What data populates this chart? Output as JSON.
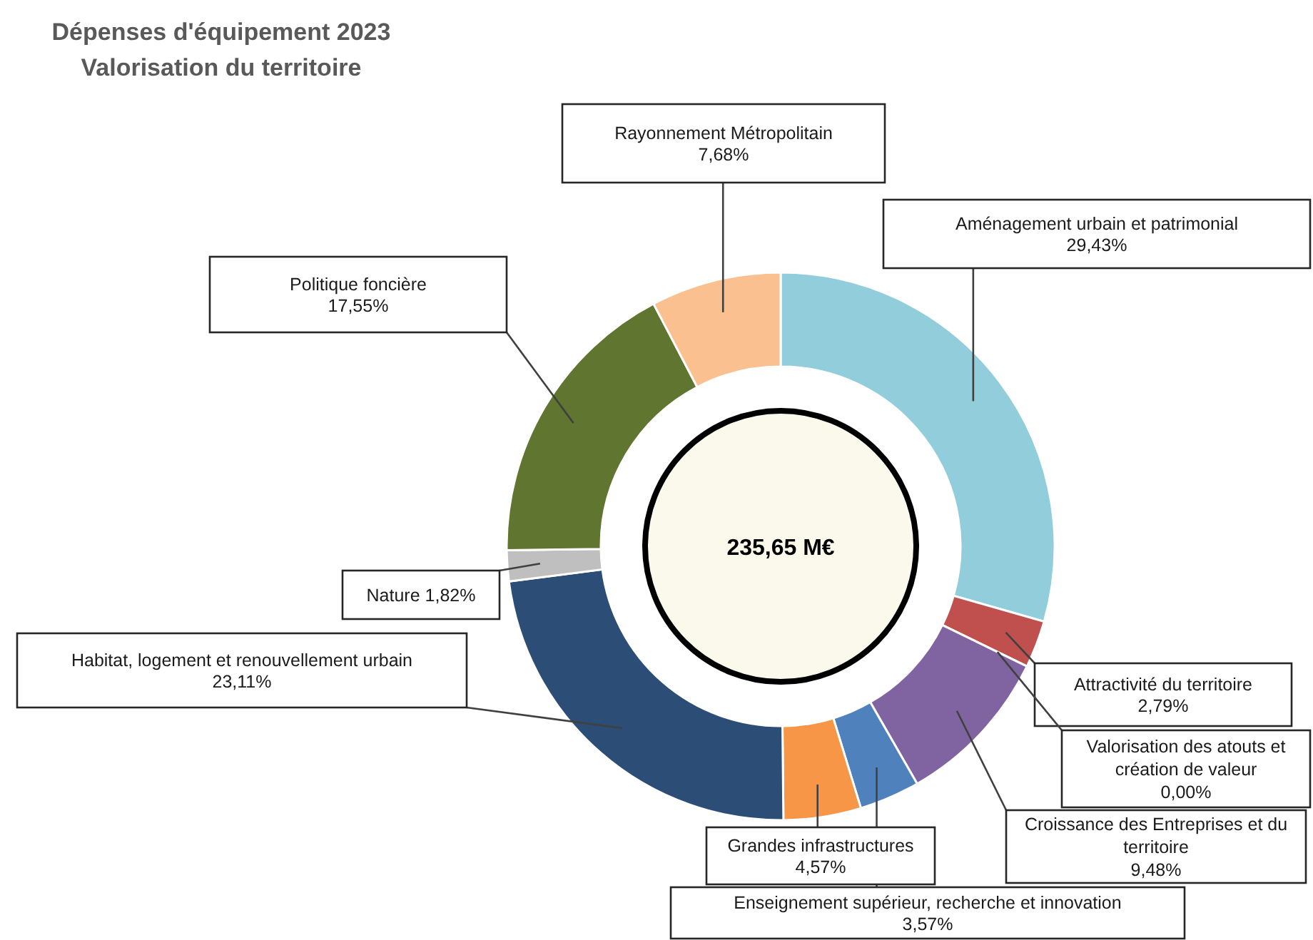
{
  "chart_data": {
    "type": "donut",
    "title": "Dépenses d'équipement 2023",
    "subtitle": "Valorisation du territoire",
    "categories": [
      "Aménagement urbain et patrimonial",
      "Attractivité du territoire",
      "Valorisation des atouts et création de valeur",
      "Croissance des Entreprises et du territoire",
      "Enseignement supérieur, recherche et innovation",
      "Grandes infrastructures",
      "Habitat, logement et renouvellement urbain",
      "Nature",
      "Politique foncière",
      "Rayonnement Métropolitain"
    ],
    "values": [
      29.43,
      2.79,
      0,
      9.48,
      3.57,
      4.57,
      23.11,
      1.82,
      17.55,
      7.68
    ],
    "colors": [
      "#92cddc",
      "#c0504d",
      "#9bbb59",
      "#8064a2",
      "#4f81bd",
      "#f79646",
      "#2c4d75",
      "#bfbfbf",
      "#5f7530",
      "#fac090"
    ],
    "value_labels": [
      "29,43%",
      "2,79%",
      "0,00%",
      "9,48%",
      "3,57%",
      "4,57%",
      "23,11%",
      "1,82%",
      "17,55%",
      "7,68%"
    ],
    "annotations": [
      "235,65 M€"
    ]
  }
}
